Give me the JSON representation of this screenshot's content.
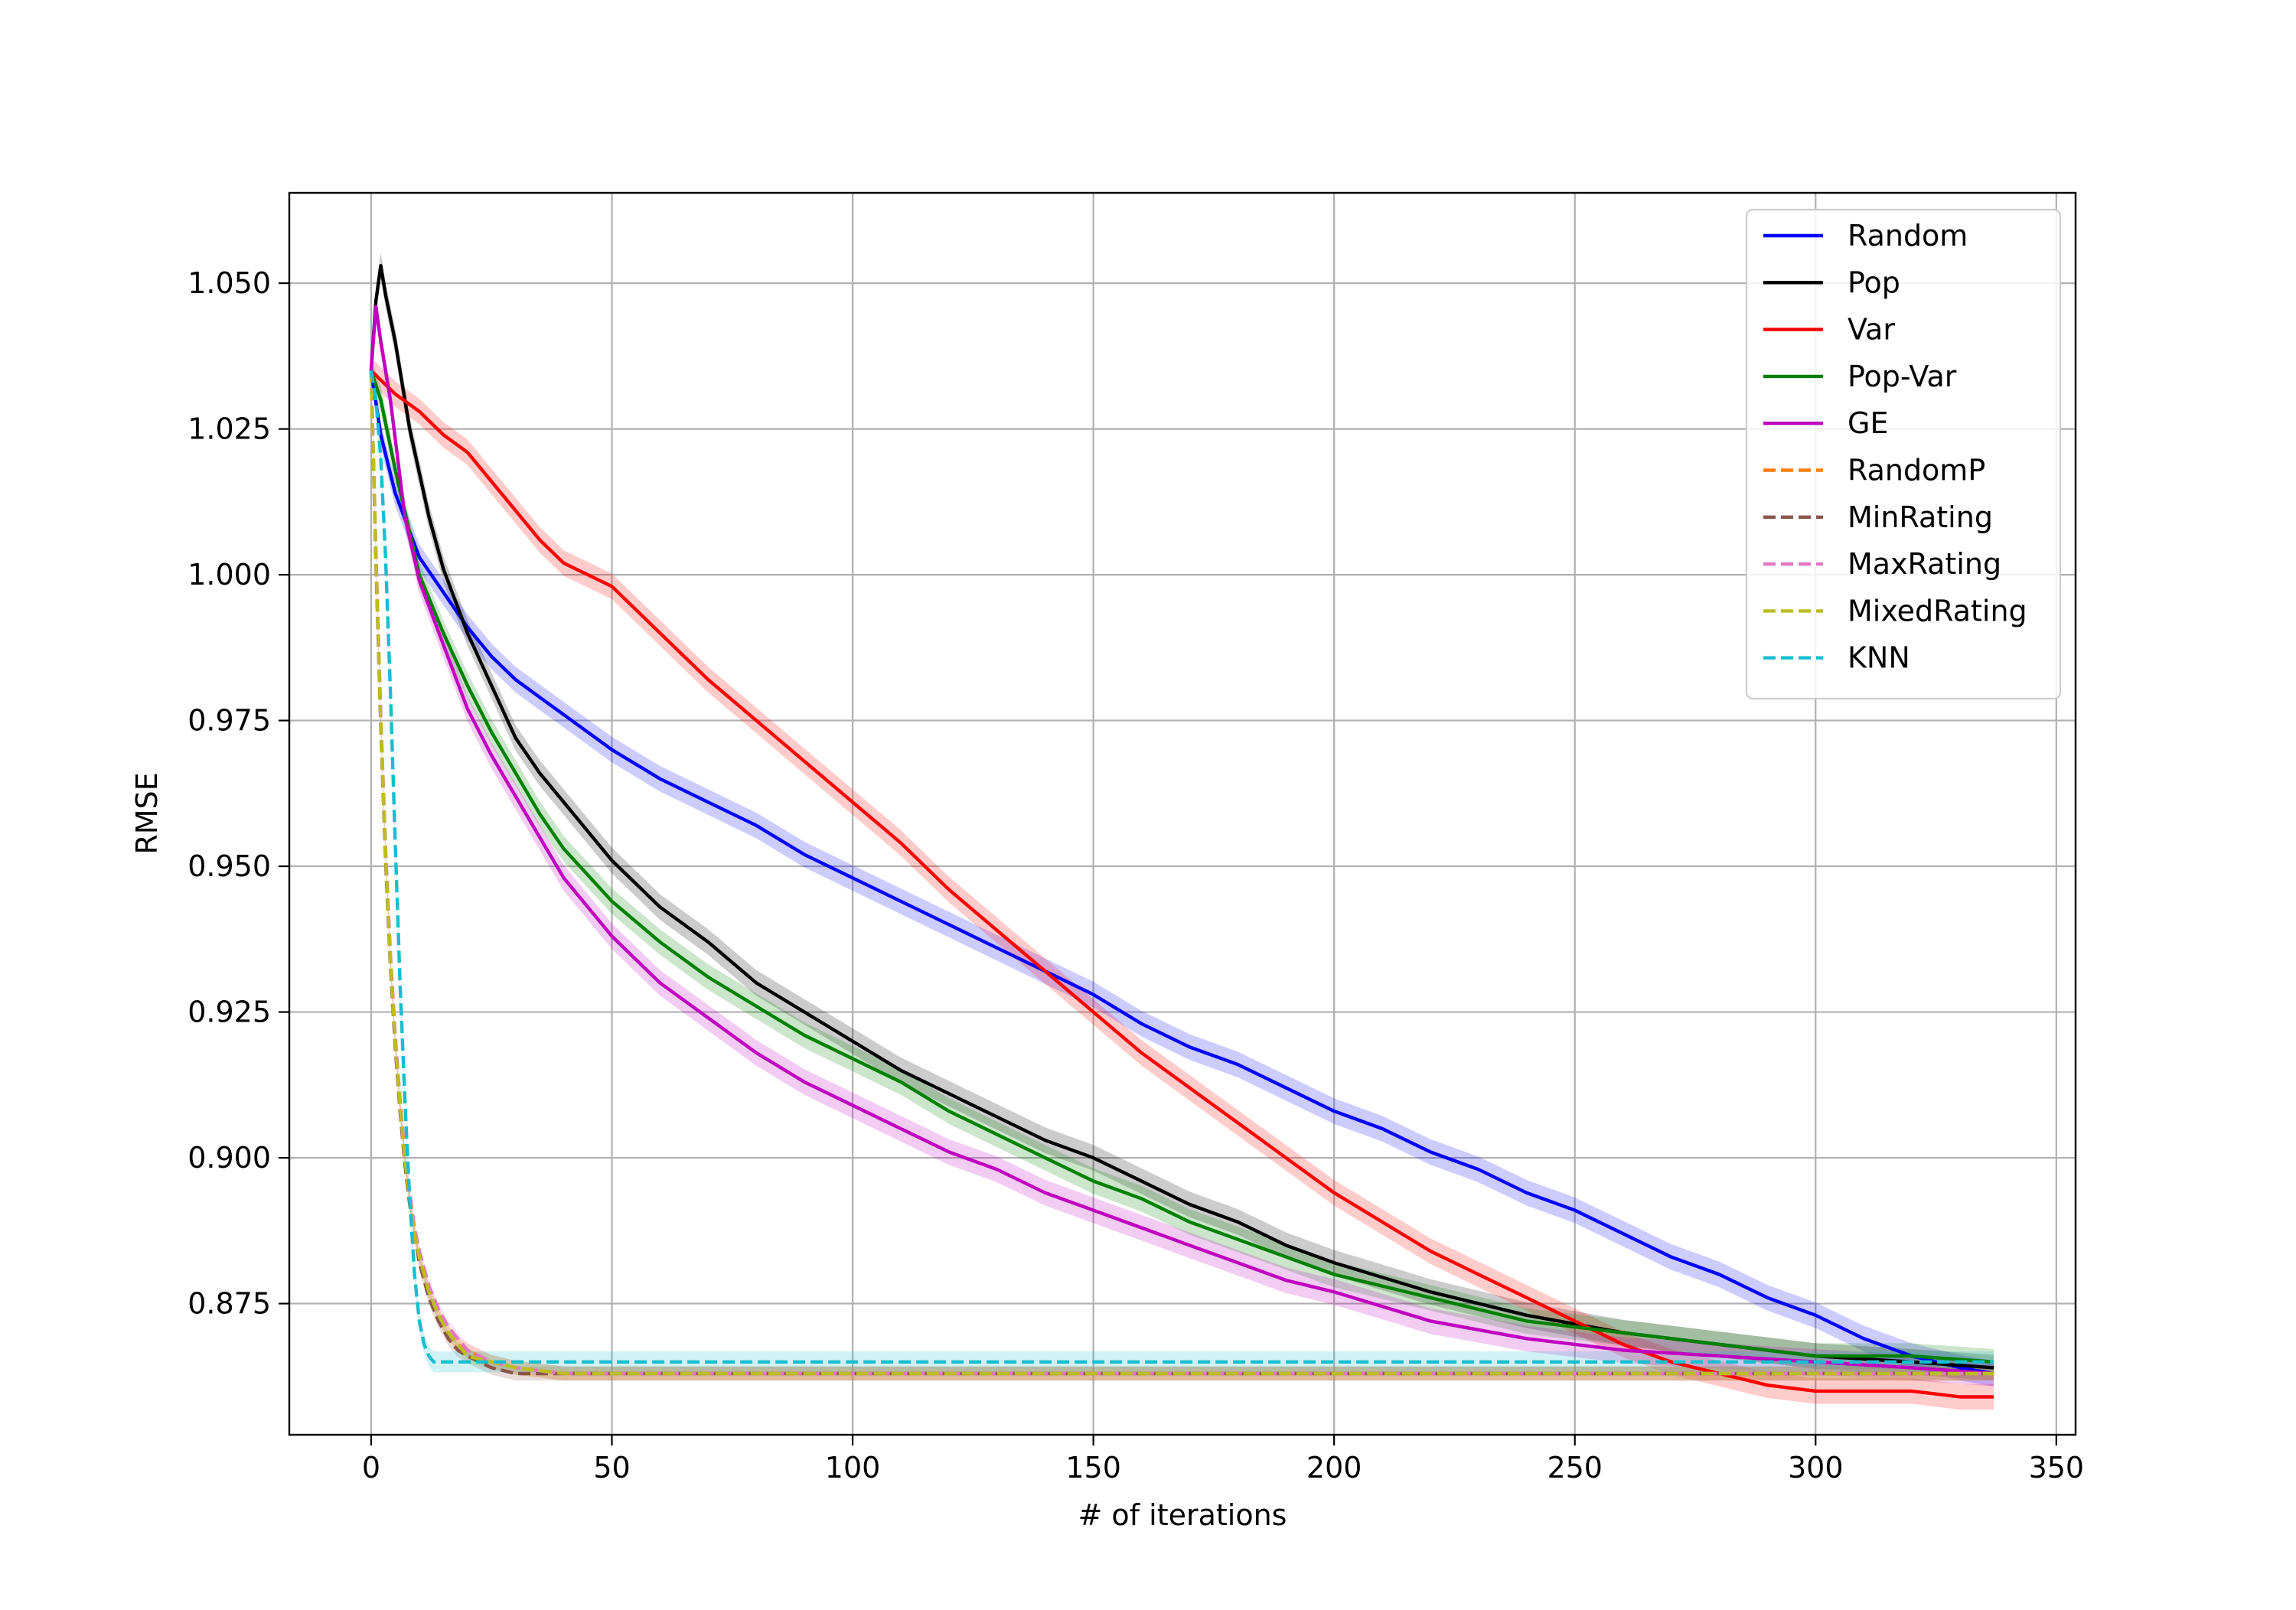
{
  "chart_data": {
    "type": "line",
    "title": "",
    "xlabel": "# of iterations",
    "ylabel": "RMSE",
    "xlim": [
      -17,
      354
    ],
    "ylim": [
      0.8525,
      1.0655
    ],
    "xticks": [
      0,
      50,
      100,
      150,
      200,
      250,
      300,
      350
    ],
    "xtick_labels": [
      "0",
      "50",
      "100",
      "150",
      "200",
      "250",
      "300",
      "350"
    ],
    "yticks": [
      0.875,
      0.9,
      0.925,
      0.95,
      0.975,
      1.0,
      1.025,
      1.05
    ],
    "ytick_labels": [
      "0.875",
      "0.900",
      "0.925",
      "0.950",
      "0.975",
      "1.000",
      "1.025",
      "1.050"
    ],
    "grid": true,
    "legend_position": "top-right",
    "series": [
      {
        "name": "Random",
        "color": "#0000ff",
        "style": "solid",
        "band": 0.0022,
        "x": [
          0,
          2,
          5,
          10,
          15,
          20,
          25,
          30,
          35,
          40,
          50,
          60,
          70,
          80,
          90,
          100,
          110,
          120,
          130,
          140,
          150,
          160,
          170,
          180,
          190,
          200,
          210,
          220,
          230,
          240,
          250,
          260,
          270,
          280,
          290,
          300,
          310,
          320,
          330,
          337
        ],
        "y": [
          1.035,
          1.024,
          1.014,
          1.003,
          0.997,
          0.991,
          0.986,
          0.982,
          0.979,
          0.976,
          0.97,
          0.965,
          0.961,
          0.957,
          0.952,
          0.948,
          0.944,
          0.94,
          0.936,
          0.932,
          0.928,
          0.923,
          0.919,
          0.916,
          0.912,
          0.908,
          0.905,
          0.901,
          0.898,
          0.894,
          0.891,
          0.887,
          0.883,
          0.88,
          0.876,
          0.873,
          0.869,
          0.866,
          0.864,
          0.863
        ]
      },
      {
        "name": "Pop",
        "color": "#000000",
        "style": "solid",
        "band": 0.0022,
        "x": [
          0,
          1,
          2,
          3,
          5,
          8,
          12,
          15,
          20,
          25,
          30,
          35,
          40,
          50,
          60,
          70,
          80,
          90,
          100,
          110,
          120,
          130,
          140,
          150,
          160,
          170,
          180,
          190,
          200,
          220,
          240,
          260,
          280,
          300,
          320,
          337
        ],
        "y": [
          1.035,
          1.047,
          1.053,
          1.048,
          1.04,
          1.025,
          1.01,
          1.001,
          0.99,
          0.981,
          0.972,
          0.966,
          0.961,
          0.951,
          0.943,
          0.937,
          0.93,
          0.925,
          0.92,
          0.915,
          0.911,
          0.907,
          0.903,
          0.9,
          0.896,
          0.892,
          0.889,
          0.885,
          0.882,
          0.877,
          0.873,
          0.87,
          0.868,
          0.866,
          0.865,
          0.864
        ]
      },
      {
        "name": "Var",
        "color": "#ff0000",
        "style": "solid",
        "band": 0.0022,
        "x": [
          0,
          5,
          10,
          15,
          20,
          25,
          30,
          35,
          40,
          50,
          60,
          70,
          80,
          90,
          100,
          110,
          120,
          130,
          140,
          150,
          160,
          170,
          180,
          190,
          200,
          210,
          220,
          230,
          240,
          250,
          260,
          270,
          280,
          290,
          300,
          310,
          320,
          330,
          337
        ],
        "y": [
          1.035,
          1.031,
          1.028,
          1.024,
          1.021,
          1.016,
          1.011,
          1.006,
          1.002,
          0.998,
          0.99,
          0.982,
          0.975,
          0.968,
          0.961,
          0.954,
          0.946,
          0.939,
          0.932,
          0.925,
          0.918,
          0.912,
          0.906,
          0.9,
          0.894,
          0.889,
          0.884,
          0.88,
          0.876,
          0.872,
          0.868,
          0.865,
          0.863,
          0.861,
          0.86,
          0.86,
          0.86,
          0.859,
          0.859
        ]
      },
      {
        "name": "Pop-Var",
        "color": "#008000",
        "style": "solid",
        "band": 0.0022,
        "x": [
          0,
          2,
          5,
          10,
          15,
          20,
          25,
          30,
          35,
          40,
          50,
          60,
          70,
          80,
          90,
          100,
          110,
          120,
          130,
          140,
          150,
          160,
          170,
          180,
          190,
          200,
          220,
          240,
          260,
          280,
          300,
          320,
          337
        ],
        "y": [
          1.035,
          1.03,
          1.018,
          1.0,
          0.99,
          0.981,
          0.973,
          0.966,
          0.959,
          0.953,
          0.944,
          0.937,
          0.931,
          0.926,
          0.921,
          0.917,
          0.913,
          0.908,
          0.904,
          0.9,
          0.896,
          0.893,
          0.889,
          0.886,
          0.883,
          0.88,
          0.876,
          0.872,
          0.87,
          0.868,
          0.866,
          0.866,
          0.865
        ]
      },
      {
        "name": "GE",
        "color": "#bf00bf",
        "style": "solid",
        "band": 0.0022,
        "x": [
          0,
          1,
          2,
          4,
          7,
          10,
          15,
          20,
          25,
          30,
          35,
          40,
          50,
          60,
          70,
          80,
          90,
          100,
          110,
          120,
          130,
          140,
          150,
          160,
          170,
          180,
          190,
          200,
          220,
          240,
          260,
          280,
          300,
          320,
          337
        ],
        "y": [
          1.035,
          1.046,
          1.04,
          1.03,
          1.01,
          0.999,
          0.988,
          0.977,
          0.969,
          0.962,
          0.955,
          0.948,
          0.938,
          0.93,
          0.924,
          0.918,
          0.913,
          0.909,
          0.905,
          0.901,
          0.898,
          0.894,
          0.891,
          0.888,
          0.885,
          0.882,
          0.879,
          0.877,
          0.872,
          0.869,
          0.867,
          0.866,
          0.865,
          0.864,
          0.863
        ]
      },
      {
        "name": "RandomP",
        "color": "#ff7f0e",
        "style": "dashed",
        "band": 0.0012,
        "x": [
          0,
          1,
          2,
          3,
          4,
          5,
          6,
          7,
          8,
          9,
          10,
          12,
          14,
          16,
          18,
          20,
          25,
          30,
          40,
          50,
          80,
          120,
          200,
          300,
          337
        ],
        "y": [
          1.035,
          1.003,
          0.975,
          0.952,
          0.934,
          0.92,
          0.909,
          0.9,
          0.893,
          0.887,
          0.883,
          0.877,
          0.873,
          0.87,
          0.868,
          0.867,
          0.865,
          0.864,
          0.863,
          0.863,
          0.863,
          0.863,
          0.863,
          0.863,
          0.863
        ]
      },
      {
        "name": "MinRating",
        "color": "#8c564b",
        "style": "dashed",
        "band": 0.0012,
        "x": [
          0,
          1,
          2,
          3,
          4,
          5,
          6,
          7,
          8,
          9,
          10,
          12,
          14,
          16,
          18,
          20,
          25,
          30,
          40,
          50,
          80,
          120,
          200,
          300,
          337
        ],
        "y": [
          1.035,
          1.002,
          0.974,
          0.951,
          0.933,
          0.919,
          0.908,
          0.899,
          0.892,
          0.887,
          0.882,
          0.876,
          0.872,
          0.869,
          0.867,
          0.866,
          0.864,
          0.863,
          0.863,
          0.863,
          0.863,
          0.863,
          0.863,
          0.863,
          0.863
        ]
      },
      {
        "name": "MaxRating",
        "color": "#e377c2",
        "style": "dashed",
        "band": 0.0012,
        "x": [
          0,
          1,
          2,
          3,
          4,
          5,
          6,
          7,
          8,
          9,
          10,
          12,
          14,
          16,
          18,
          20,
          25,
          30,
          40,
          50,
          80,
          120,
          200,
          300,
          337
        ],
        "y": [
          1.035,
          1.004,
          0.976,
          0.953,
          0.935,
          0.921,
          0.91,
          0.901,
          0.894,
          0.888,
          0.884,
          0.878,
          0.874,
          0.871,
          0.869,
          0.867,
          0.865,
          0.864,
          0.863,
          0.863,
          0.863,
          0.863,
          0.863,
          0.863,
          0.863
        ]
      },
      {
        "name": "MixedRating",
        "color": "#bcbd22",
        "style": "dashed",
        "band": 0.0012,
        "x": [
          0,
          1,
          2,
          3,
          4,
          5,
          6,
          7,
          8,
          9,
          10,
          12,
          14,
          16,
          18,
          20,
          25,
          30,
          40,
          50,
          80,
          120,
          200,
          300,
          337
        ],
        "y": [
          1.035,
          1.003,
          0.975,
          0.952,
          0.934,
          0.92,
          0.909,
          0.9,
          0.893,
          0.887,
          0.883,
          0.877,
          0.873,
          0.87,
          0.868,
          0.866,
          0.865,
          0.864,
          0.863,
          0.863,
          0.863,
          0.863,
          0.863,
          0.863,
          0.863
        ]
      },
      {
        "name": "KNN",
        "color": "#17becf",
        "style": "dashed",
        "band": 0.0018,
        "x": [
          0,
          1,
          2,
          3,
          4,
          5,
          6,
          7,
          8,
          9,
          10,
          11,
          12,
          13,
          15,
          20,
          50,
          100,
          200,
          300,
          337
        ],
        "y": [
          1.035,
          1.03,
          1.02,
          1.003,
          0.98,
          0.954,
          0.93,
          0.91,
          0.893,
          0.88,
          0.872,
          0.868,
          0.866,
          0.865,
          0.865,
          0.865,
          0.865,
          0.865,
          0.865,
          0.865,
          0.865
        ]
      }
    ]
  }
}
